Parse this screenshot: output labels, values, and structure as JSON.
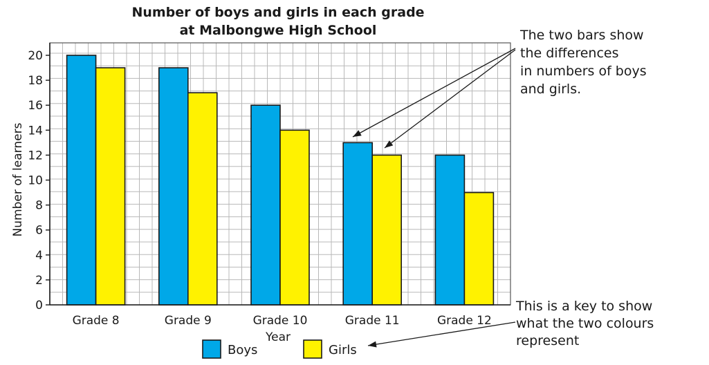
{
  "chart_data": {
    "type": "bar",
    "title": [
      "Number of boys and girls in each grade",
      "at Malbongwe High School"
    ],
    "xlabel": "Year",
    "ylabel": "Number of learners",
    "categories": [
      "Grade 8",
      "Grade 9",
      "Grade 10",
      "Grade 11",
      "Grade 12"
    ],
    "series": [
      {
        "name": "Boys",
        "color": "#00a8e8",
        "values": [
          20,
          19,
          16,
          13,
          12
        ]
      },
      {
        "name": "Girls",
        "color": "#fff200",
        "values": [
          19,
          17,
          14,
          12,
          9
        ]
      }
    ],
    "ylim": [
      0,
      20
    ],
    "yticks": [
      0,
      2,
      4,
      6,
      8,
      10,
      12,
      14,
      16,
      18,
      20
    ],
    "grid": true,
    "legend_position": "bottom",
    "annotations": [
      {
        "lines": [
          "The two bars show",
          "the differences",
          "in numbers of boys",
          "and girls."
        ]
      },
      {
        "lines": [
          "This is a key to show",
          "what the two colours",
          "represent"
        ]
      }
    ]
  }
}
